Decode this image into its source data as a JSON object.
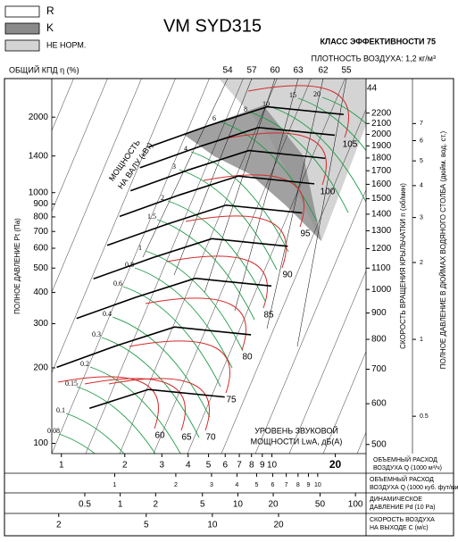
{
  "chart_data": {
    "type": "line",
    "title": "VM SYD315",
    "subtitle": "КЛАСС ЭФФЕКТИВНОСТИ 75",
    "density": "ПЛОТНОСТЬ ВОЗДУХА: 1,2 кг/м³",
    "legend": [
      "R",
      "K",
      "НЕ НОРМ."
    ],
    "legend_colors": [
      "#ffffff",
      "#8a8a8a",
      "#d4d4d4"
    ],
    "efficiency_title": "ОБЩИЙ КПД η (%)",
    "efficiency_values": [
      54,
      57,
      60,
      63,
      62,
      55
    ],
    "efficiency_end": 44,
    "log_scale": true,
    "ylabel": "ПОЛНОЕ ДАВЛЕНИЕ Pt (Па)",
    "ylim": [
      91,
      2850
    ],
    "yticks": [
      100,
      200,
      300,
      400,
      500,
      600,
      700,
      800,
      900,
      1000,
      1400,
      2000
    ],
    "xlabel": [
      "ОБЪЕМНЫЙ РАСХОД",
      "ВОЗДУХА Q (1000 м³/ч)"
    ],
    "xlim": [
      0.9,
      28
    ],
    "xticks": [
      1,
      2,
      3,
      4,
      5,
      6,
      7,
      8,
      9,
      10,
      20
    ],
    "y2label": "СКОРОСТЬ ВРАЩЕНИЯ КРЫЛЬЧАТКИ n (об/мин)",
    "y2lim": [
      480,
      2567
    ],
    "y2ticks": [
      500,
      600,
      700,
      800,
      900,
      1000,
      1100,
      1200,
      1300,
      1400,
      1500,
      1600,
      1700,
      1800,
      1900,
      2000,
      2100,
      2200
    ],
    "y3label": "ПОЛНОЕ ДАВЛЕНИЕ В ДЮЙМАХ ВОДЯНОГО СТОЛБА (дюйм. вод. ст.)",
    "y3lim": [
      0.357,
      10.5
    ],
    "y3ticks": [
      0.5,
      1,
      2,
      3,
      4,
      5,
      6,
      7
    ],
    "extra_x_axes": [
      {
        "label": [
          "ОБЪЕМНЫЙ РАСХОД",
          "ВОЗДУХА Q (1000 куб. фут/мин)"
        ],
        "lim": [
          0.49,
          17.3
        ],
        "ticks": [
          1,
          2,
          3,
          4,
          5,
          6,
          7,
          8,
          9,
          10
        ]
      },
      {
        "label": [
          "ДИНАМИЧЕСКОЕ",
          "ДАВЛЕНИЕ Pd (10 Pa)"
        ],
        "lim": [
          0.262,
          123
        ],
        "ticks": [
          0.5,
          1,
          2,
          5,
          10,
          20,
          50,
          100
        ]
      },
      {
        "label": [
          "СКОРОСТЬ ВОЗДУХА",
          "НА ВЫХОДЕ C (м/с)"
        ],
        "lim": [
          1.86,
          50
        ],
        "ticks": [
          2,
          5,
          10,
          20
        ]
      }
    ],
    "series": [
      {
        "color": "#000000",
        "x": [
          2.6,
          5,
          9.5,
          21.9
        ],
        "values": [
          1520,
          1850,
          2200,
          2050
        ]
      },
      {
        "color": "#000000",
        "x": [
          2.36,
          4.55,
          8.64,
          19.9
        ],
        "values": [
          1256,
          1528,
          1818,
          1694
        ]
      },
      {
        "color": "#000000",
        "x": [
          2.13,
          4.09,
          7.77,
          17.9
        ],
        "values": [
          1017,
          1238,
          1472,
          1371
        ]
      },
      {
        "color": "#000000",
        "x": [
          1.89,
          3.64,
          6.91,
          15.9
        ],
        "values": [
          804,
          979,
          1164,
          1084
        ]
      },
      {
        "color": "#000000",
        "x": [
          1.65,
          3.18,
          6.05,
          13.9
        ],
        "values": [
          616,
          749,
          891,
          830
        ]
      },
      {
        "color": "#000000",
        "x": [
          1.42,
          2.73,
          5.18,
          11.9
        ],
        "values": [
          453,
          551,
          655,
          611
        ]
      },
      {
        "color": "#000000",
        "x": [
          1.18,
          2.27,
          4.32,
          9.95
        ],
        "values": [
          315,
          383,
          455,
          424
        ]
      },
      {
        "color": "#000000",
        "x": [
          0.95,
          1.82,
          3.45,
          7.96
        ],
        "values": [
          201,
          245,
          291,
          271
        ]
      },
      {
        "color": "#000000",
        "x": [
          1.36,
          2.59,
          5.97
        ],
        "values": [
          138,
          164,
          153
        ]
      }
    ],
    "power_title": [
      "МОЩНОСТЬ",
      "НА ВАЛУ (кВт)"
    ],
    "power_kw": [
      0.08,
      0.1,
      0.15,
      0.2,
      0.3,
      0.4,
      0.6,
      0.8,
      1,
      1.5,
      2,
      3,
      4,
      6,
      8,
      10,
      15,
      20
    ],
    "power_color": "#1e9a46",
    "sound_title": [
      "УРОВЕНЬ ЗВУКОВОЙ",
      "МОЩНОСТИ LwA, дБ(A)"
    ],
    "sound_levels": [
      60,
      65,
      70,
      75,
      80,
      85,
      90,
      95,
      100,
      105
    ],
    "sound_color": "#d42a2a"
  }
}
